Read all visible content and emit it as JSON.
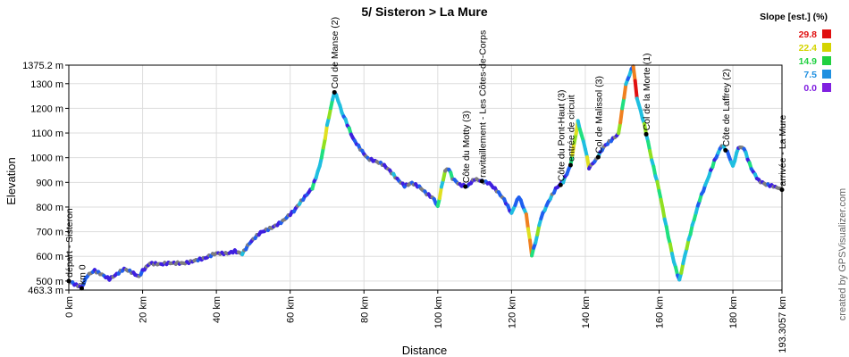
{
  "chart_data": {
    "type": "line",
    "title": "5/ Sisteron > La Mure",
    "xlabel": "Distance",
    "ylabel": "Elevation",
    "xlim": [
      0,
      193.3057
    ],
    "ylim": [
      463.3,
      1375.2
    ],
    "x_ticks": [
      0,
      20,
      40,
      60,
      80,
      100,
      120,
      140,
      160,
      180,
      193.3057
    ],
    "x_tick_labels": [
      "0 km",
      "20 km",
      "40 km",
      "60 km",
      "80 km",
      "100 km",
      "120 km",
      "140 km",
      "160 km",
      "180 km",
      "193.3057 km"
    ],
    "y_ticks": [
      463.3,
      500,
      600,
      700,
      800,
      900,
      1000,
      1100,
      1200,
      1300,
      1375.2
    ],
    "y_tick_labels": [
      "463.3 m",
      "500 m",
      "600 m",
      "700 m",
      "800 m",
      "900 m",
      "1000 m",
      "1100 m",
      "1200 m",
      "1300 m",
      "1375.2 m"
    ],
    "grid": true,
    "series": [
      {
        "x": [
          0,
          2,
          3.5,
          5,
          7,
          9,
          11,
          13,
          15,
          17,
          19,
          20,
          22,
          25,
          28,
          31,
          34,
          37,
          40,
          43,
          45,
          47,
          49,
          52,
          55,
          58,
          61,
          64,
          66,
          68,
          69,
          70,
          71,
          72,
          73,
          74,
          75,
          77,
          79,
          81,
          83,
          85,
          87,
          89,
          91,
          93,
          95,
          97,
          99,
          100,
          101,
          102,
          103,
          104,
          106,
          108,
          110,
          112,
          114,
          116,
          118,
          120,
          122,
          124,
          125.5,
          126.5,
          128,
          130,
          132,
          134,
          136,
          137,
          138,
          140,
          141,
          143,
          145,
          147,
          149,
          150,
          151,
          152,
          153,
          154,
          156,
          158,
          160,
          162,
          164,
          165.5,
          167,
          169,
          171,
          173,
          175,
          177,
          178.5,
          180,
          181.5,
          183,
          185,
          187,
          189,
          191,
          193.3057
        ],
        "y": [
          500,
          480,
          470,
          520,
          545,
          530,
          510,
          525,
          545,
          535,
          520,
          545,
          575,
          565,
          570,
          575,
          585,
          590,
          610,
          615,
          625,
          610,
          650,
          695,
          720,
          745,
          780,
          840,
          880,
          970,
          1040,
          1130,
          1200,
          1265,
          1230,
          1180,
          1150,
          1080,
          1040,
          1000,
          985,
          970,
          945,
          915,
          890,
          900,
          880,
          850,
          830,
          800,
          880,
          950,
          960,
          920,
          890,
          880,
          910,
          905,
          900,
          870,
          830,
          770,
          840,
          770,
          610,
          660,
          760,
          820,
          870,
          900,
          970,
          1060,
          1150,
          1040,
          960,
          990,
          1040,
          1070,
          1100,
          1200,
          1300,
          1340,
          1375,
          1240,
          1130,
          990,
          870,
          720,
          580,
          500,
          600,
          720,
          830,
          910,
          990,
          1050,
          1020,
          960,
          1040,
          1040,
          960,
          910,
          890,
          880,
          870
        ],
        "slope_colors": [
          "#7f7f7f",
          "#3f1fe0",
          "#1f5ff0",
          "#1fbfe0",
          "#1fe080",
          "#90e020",
          "#e0e020",
          "#f08020",
          "#e01010"
        ]
      }
    ],
    "waypoints": [
      {
        "x": 0,
        "label": "départ - Sisteron"
      },
      {
        "x": 3.5,
        "label": "km 0"
      },
      {
        "x": 72,
        "label": "Col de Manse (2)"
      },
      {
        "x": 107.5,
        "label": "Côte du Motty (3)"
      },
      {
        "x": 112,
        "label": "ravitaillement - Les Côtes-de-Corps"
      },
      {
        "x": 133.3,
        "label": "Côte du Pont-Haut (3)"
      },
      {
        "x": 136,
        "label": "entrée de circuit"
      },
      {
        "x": 143.5,
        "label": "Col de Malissol (3)"
      },
      {
        "x": 156.5,
        "label": "Col de la Morte (1)"
      },
      {
        "x": 178,
        "label": "Côte de Laffrey (2)"
      },
      {
        "x": 193.3057,
        "label": "arrivée - La Mure"
      }
    ],
    "legend": {
      "title": "Slope [est.] (%)",
      "placement": "top-right",
      "entries": [
        {
          "label": "29.8",
          "color": "#e01010"
        },
        {
          "label": "22.4",
          "color": "#d4d400"
        },
        {
          "label": "14.9",
          "color": "#20d040"
        },
        {
          "label": "7.5",
          "color": "#2090e0"
        },
        {
          "label": "0.0",
          "color": "#8020e0"
        }
      ]
    }
  },
  "credit": "created by GPSVisualizer.com"
}
